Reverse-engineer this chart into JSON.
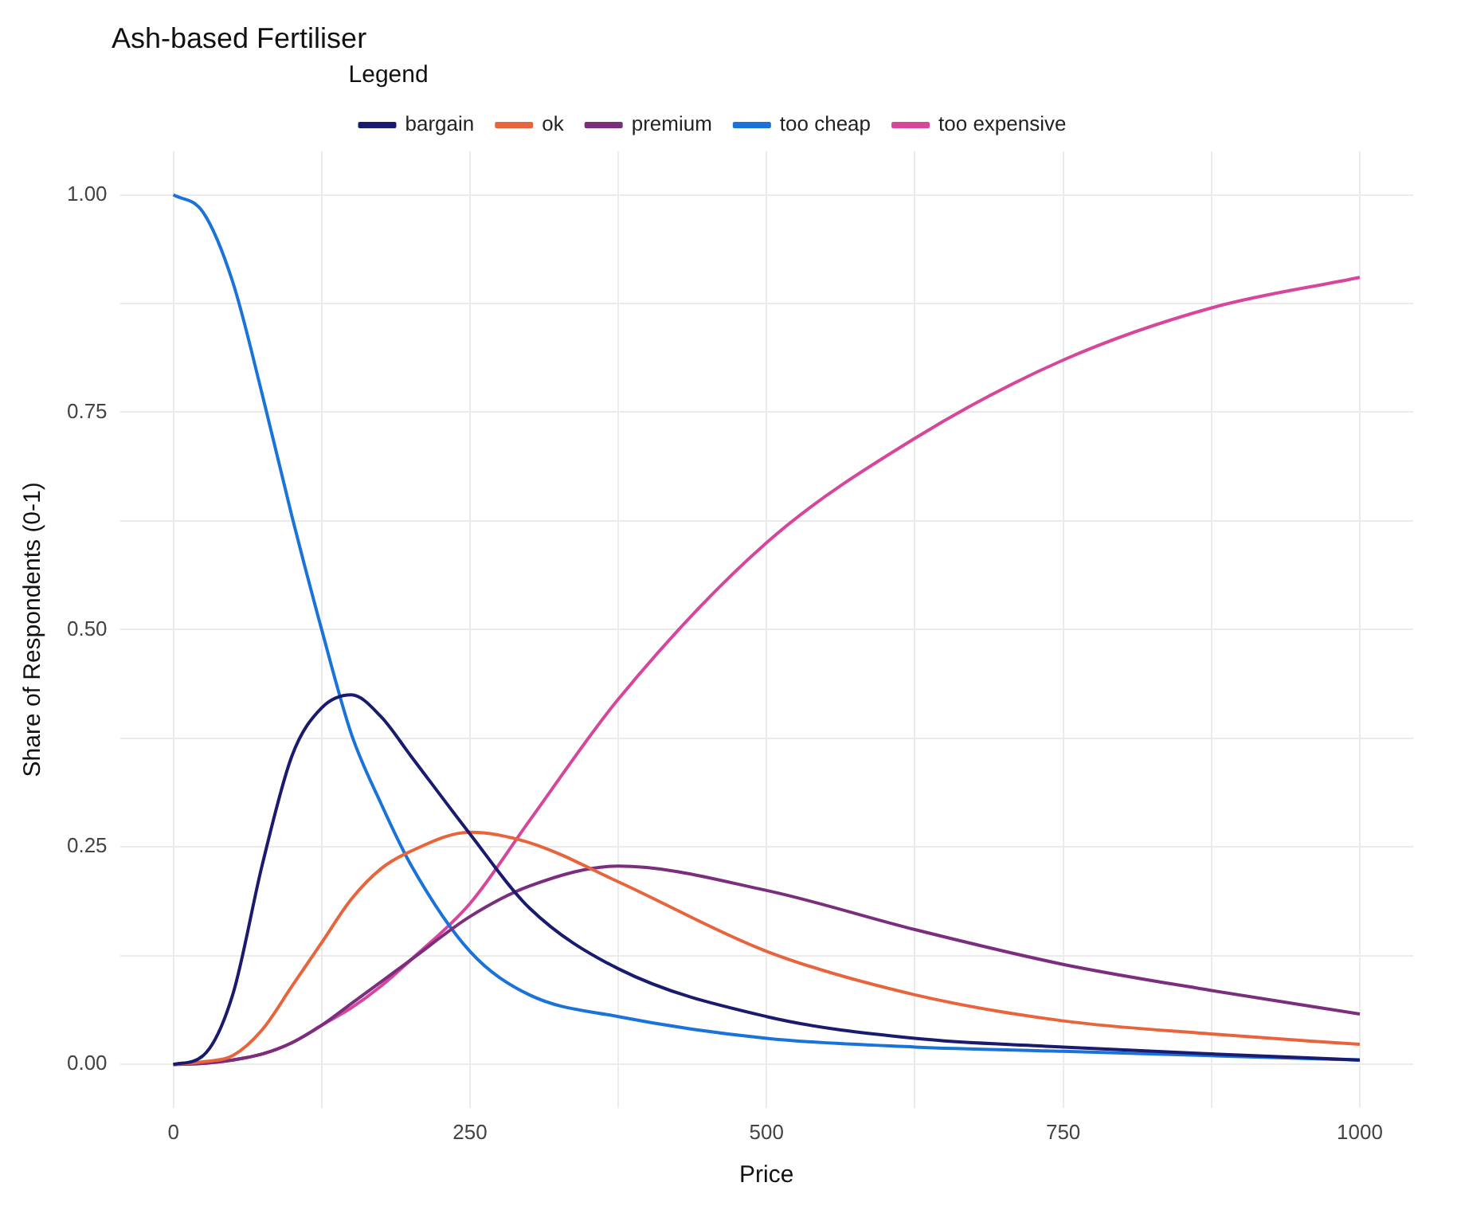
{
  "chart_data": {
    "type": "line",
    "title": "Ash-based Fertiliser",
    "xlabel": "Price",
    "ylabel": "Share of Respondents (0-1)",
    "legend_title": "Legend",
    "legend": "top",
    "x": [
      0,
      25,
      50,
      75,
      100,
      125,
      150,
      175,
      200,
      250,
      300,
      375,
      500,
      625,
      750,
      875,
      1000
    ],
    "series": [
      {
        "name": "bargain",
        "color": "#1a1a6e",
        "values": [
          0,
          0.01,
          0.08,
          0.23,
          0.355,
          0.41,
          0.425,
          0.4,
          0.355,
          0.265,
          0.18,
          0.11,
          0.055,
          0.03,
          0.02,
          0.012,
          0.005
        ]
      },
      {
        "name": "ok",
        "color": "#e8643c",
        "values": [
          0,
          0.003,
          0.01,
          0.04,
          0.09,
          0.14,
          0.19,
          0.225,
          0.245,
          0.267,
          0.255,
          0.21,
          0.13,
          0.08,
          0.05,
          0.035,
          0.023
        ]
      },
      {
        "name": "premium",
        "color": "#7b2d7e",
        "values": [
          0,
          0.001,
          0.005,
          0.012,
          0.025,
          0.045,
          0.07,
          0.095,
          0.12,
          0.17,
          0.205,
          0.228,
          0.2,
          0.155,
          0.115,
          0.085,
          0.058
        ]
      },
      {
        "name": "too cheap",
        "color": "#1a73d8",
        "values": [
          1.0,
          0.98,
          0.9,
          0.77,
          0.63,
          0.5,
          0.38,
          0.3,
          0.23,
          0.13,
          0.08,
          0.055,
          0.03,
          0.02,
          0.015,
          0.01,
          0.005
        ]
      },
      {
        "name": "too expensive",
        "color": "#d6479b",
        "values": [
          0,
          0.001,
          0.005,
          0.012,
          0.025,
          0.045,
          0.065,
          0.09,
          0.12,
          0.185,
          0.28,
          0.42,
          0.6,
          0.72,
          0.81,
          0.87,
          0.905
        ]
      }
    ],
    "xlim": [
      -45,
      1045
    ],
    "xticks": [
      0,
      {
        "value": 125,
        "label": null
      },
      250,
      {
        "value": 375,
        "label": null
      },
      500,
      {
        "value": 625,
        "label": null
      },
      750,
      {
        "value": 875,
        "label": null
      },
      1000
    ],
    "ylim": [
      -0.05,
      1.05
    ],
    "yticks": [
      {
        "value": 0,
        "label": "0.00"
      },
      {
        "value": 0.125,
        "label": null
      },
      {
        "value": 0.25,
        "label": "0.25"
      },
      {
        "value": 0.375,
        "label": null
      },
      {
        "value": 0.5,
        "label": "0.50"
      },
      {
        "value": 0.625,
        "label": null
      },
      {
        "value": 0.75,
        "label": "0.75"
      },
      {
        "value": 0.875,
        "label": null
      },
      {
        "value": 1,
        "label": "1.00"
      }
    ],
    "grid": true,
    "marker": "none",
    "line_style": "solid"
  }
}
